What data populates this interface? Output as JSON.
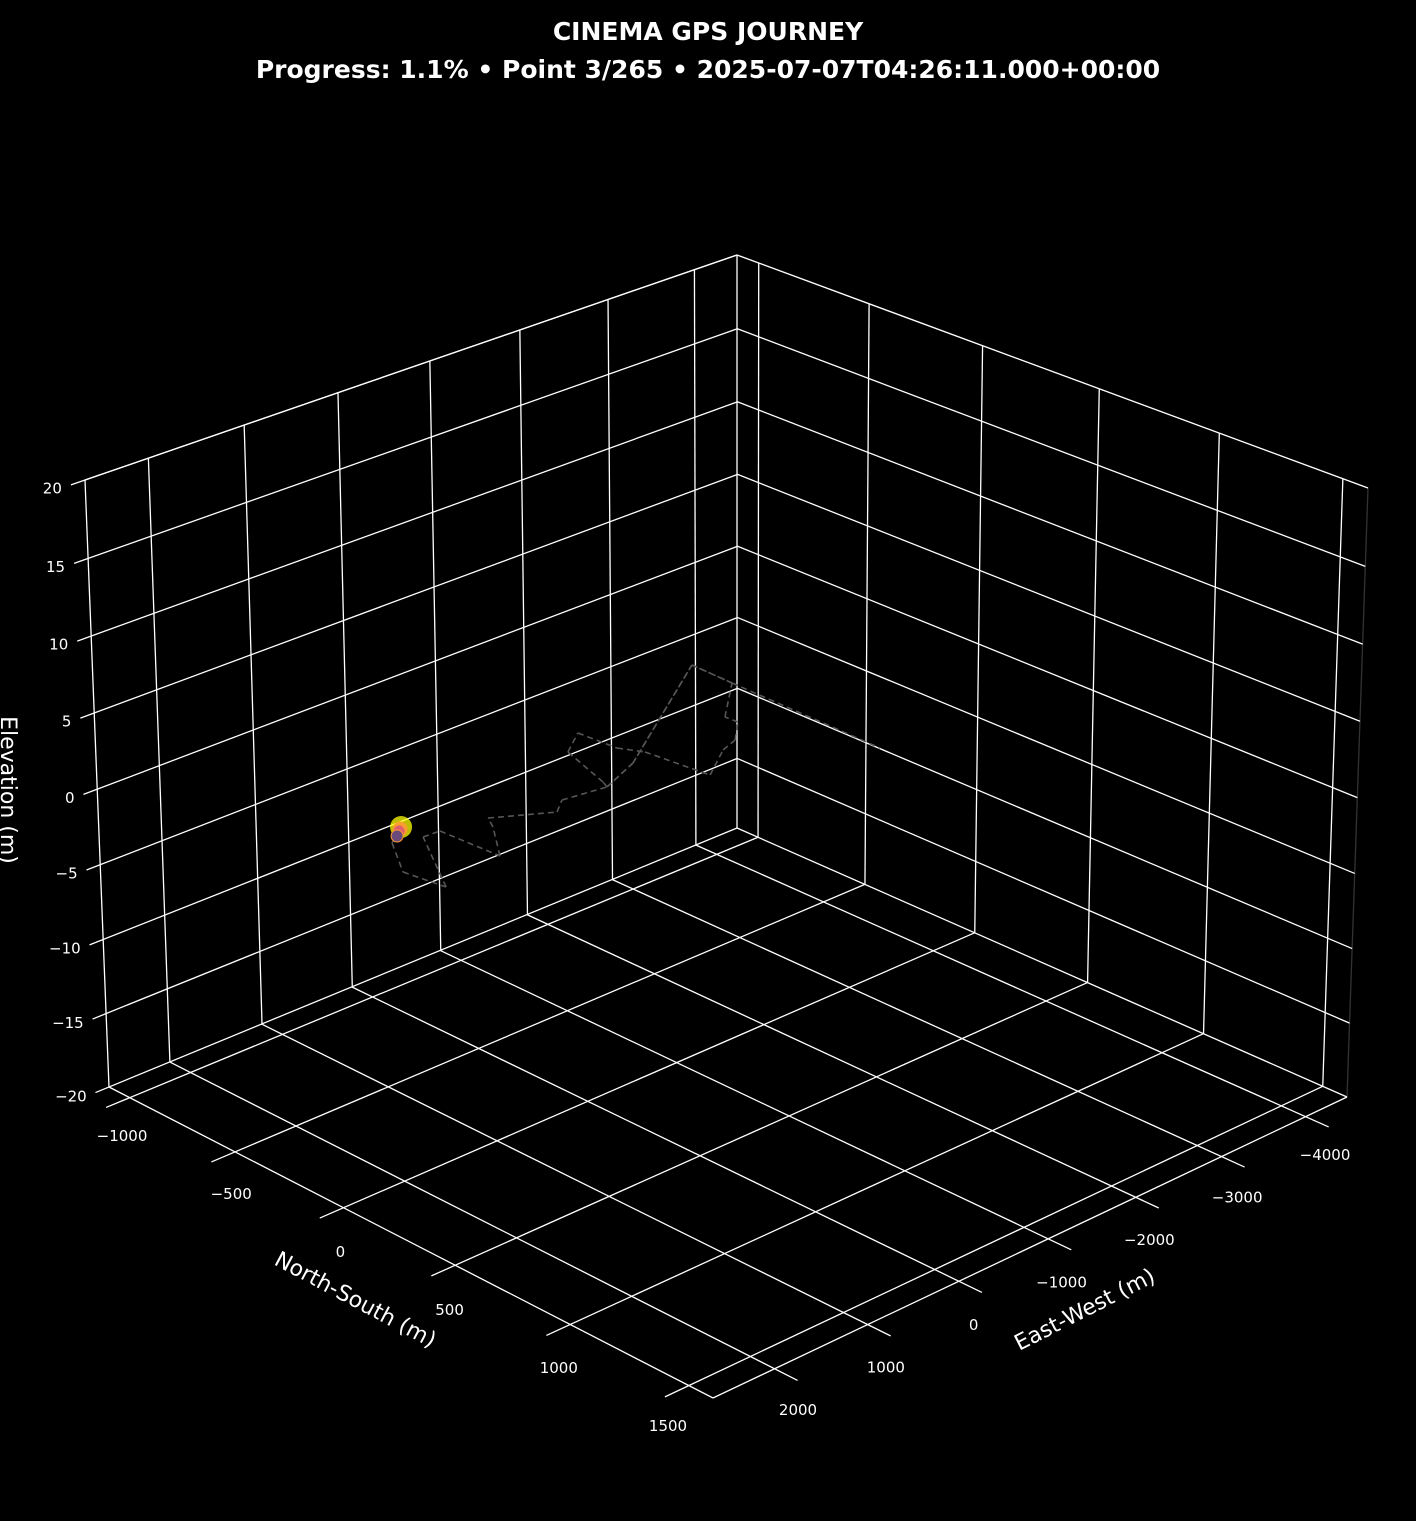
{
  "header": {
    "title": "CINEMA GPS JOURNEY",
    "subtitle": "Progress: 1.1% • Point 3/265 • 2025-07-07T04:26:11.000+00:00"
  },
  "chart_data": {
    "type": "line",
    "projection": "3d",
    "title": "CINEMA GPS JOURNEY",
    "progress_percent": 1.1,
    "current_point": 3,
    "total_points": 265,
    "timestamp": "2025-07-07T04:26:11.000+00:00",
    "background": "#000000",
    "grid": true,
    "axes": {
      "x": {
        "label": "East-West (m)",
        "lim": [
          -4500,
          2650
        ],
        "ticks": [
          -4000,
          -3000,
          -2000,
          -1000,
          0,
          1000,
          2000
        ],
        "tick_labels": [
          "−4000",
          "−3000",
          "−2000",
          "−1000",
          "0",
          "1000",
          "2000"
        ]
      },
      "y": {
        "label": "North-South (m)",
        "lim": [
          -1100,
          1600
        ],
        "ticks": [
          -1000,
          -500,
          0,
          500,
          1000,
          1500
        ],
        "tick_labels": [
          "−1000",
          "−500",
          "0",
          "500",
          "1000",
          "1500"
        ]
      },
      "z": {
        "label": "Elevation (m)",
        "lim": [
          -20,
          20
        ],
        "ticks": [
          -20,
          -15,
          -10,
          -5,
          0,
          5,
          10,
          15,
          20
        ],
        "tick_labels": [
          "−20",
          "−15",
          "−10",
          "−5",
          "0",
          "5",
          "10",
          "15",
          "20"
        ]
      }
    },
    "route": {
      "style": "dashed",
      "color": "#555555",
      "points": [
        {
          "ew": 1305,
          "ns": -172,
          "elev": 0
        },
        {
          "ew": 1481,
          "ns": -122,
          "elev": 0
        },
        {
          "ew": 1800,
          "ns": 68,
          "elev": 0
        },
        {
          "ew": 1764,
          "ns": 247,
          "elev": 0
        },
        {
          "ew": 1236,
          "ns": -89,
          "elev": 0
        },
        {
          "ew": 1067,
          "ns": -87,
          "elev": 0
        },
        {
          "ew": 1070,
          "ns": 186,
          "elev": 0
        },
        {
          "ew": 730,
          "ns": 5,
          "elev": 0
        },
        {
          "ew": 640,
          "ns": -57,
          "elev": 0
        },
        {
          "ew": 191,
          "ns": 58,
          "elev": 0
        },
        {
          "ew": 8,
          "ns": 0,
          "elev": 0
        },
        {
          "ew": -404,
          "ns": 23,
          "elev": 0
        },
        {
          "ew": -447,
          "ns": -14,
          "elev": 0
        },
        {
          "ew": -650,
          "ns": -262,
          "elev": 0
        },
        {
          "ew": -951,
          "ns": -349,
          "elev": 0
        },
        {
          "ew": -965,
          "ns": -178,
          "elev": 0
        },
        {
          "ew": -1064,
          "ns": -95,
          "elev": 0
        },
        {
          "ew": -1113,
          "ns": 178,
          "elev": 0
        },
        {
          "ew": -1509,
          "ns": 63,
          "elev": 0
        },
        {
          "ew": -1703,
          "ns": 32,
          "elev": 0
        },
        {
          "ew": -1954,
          "ns": -65,
          "elev": 0
        },
        {
          "ew": -1949,
          "ns": -122,
          "elev": 0
        },
        {
          "ew": -2430,
          "ns": -301,
          "elev": 0
        },
        {
          "ew": -2449,
          "ns": -491,
          "elev": 0
        },
        {
          "ew": -856,
          "ns": -58,
          "elev": 0
        },
        {
          "ew": -404,
          "ns": 23,
          "elev": 0
        },
        {
          "ew": -856,
          "ns": -58,
          "elev": 0
        },
        {
          "ew": -2449,
          "ns": -491,
          "elev": 0
        },
        {
          "ew": -2430,
          "ns": -301,
          "elev": 0
        },
        {
          "ew": -2378,
          "ns": 392,
          "elev": 0
        }
      ]
    },
    "current_marker": {
      "ew": 1305,
      "ns": -172,
      "elev": 0,
      "colors": {
        "glow": "#ffff00",
        "ring": "#ff9933",
        "head": "#e06070",
        "trail": "#6a4a7a"
      }
    }
  }
}
